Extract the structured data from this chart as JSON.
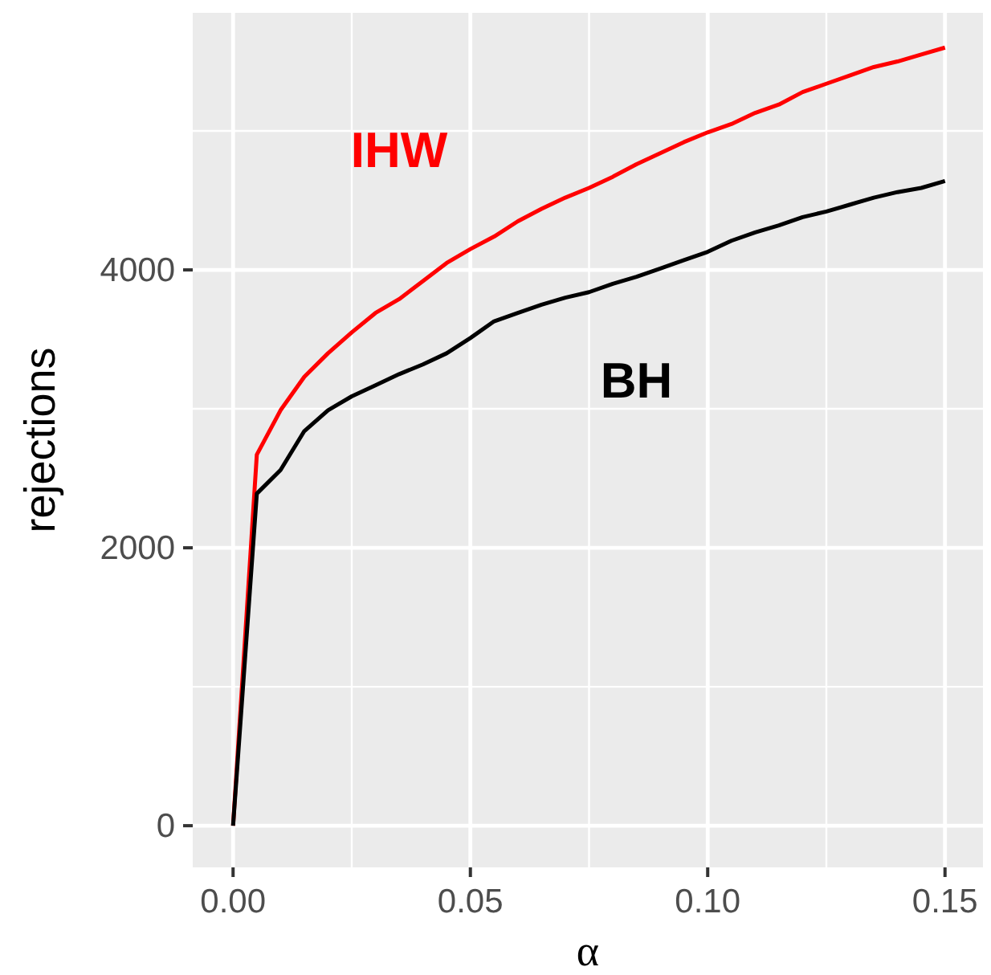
{
  "chart_data": {
    "type": "line",
    "xlabel": "α",
    "ylabel": "rejections",
    "x": [
      0,
      0.005,
      0.01,
      0.015,
      0.02,
      0.025,
      0.03,
      0.035,
      0.04,
      0.045,
      0.05,
      0.055,
      0.06,
      0.065,
      0.07,
      0.075,
      0.08,
      0.085,
      0.09,
      0.095,
      0.1,
      0.105,
      0.11,
      0.115,
      0.12,
      0.125,
      0.13,
      0.135,
      0.14,
      0.145,
      0.15
    ],
    "series": [
      {
        "name": "IHW",
        "color": "#ff0000",
        "values": [
          0,
          2670,
          2990,
          3230,
          3400,
          3550,
          3690,
          3790,
          3920,
          4050,
          4150,
          4240,
          4350,
          4440,
          4520,
          4590,
          4670,
          4760,
          4840,
          4920,
          4990,
          5050,
          5130,
          5190,
          5280,
          5340,
          5400,
          5460,
          5500,
          5550,
          5600
        ]
      },
      {
        "name": "BH",
        "color": "#000000",
        "values": [
          0,
          2390,
          2560,
          2840,
          2990,
          3090,
          3170,
          3250,
          3320,
          3400,
          3510,
          3630,
          3690,
          3750,
          3800,
          3840,
          3900,
          3950,
          4010,
          4070,
          4130,
          4210,
          4270,
          4320,
          4380,
          4420,
          4470,
          4520,
          4560,
          4590,
          4640
        ]
      }
    ],
    "xlim": [
      -0.0085,
      0.158
    ],
    "ylim": [
      -300,
      5850
    ],
    "xticks": [
      {
        "value": 0,
        "label": "0.00"
      },
      {
        "value": 0.05,
        "label": "0.05"
      },
      {
        "value": 0.1,
        "label": "0.10"
      },
      {
        "value": 0.15,
        "label": "0.15"
      }
    ],
    "yticks": [
      0,
      2000,
      4000
    ],
    "grid": true,
    "line_style": "solid",
    "marker": "none"
  }
}
